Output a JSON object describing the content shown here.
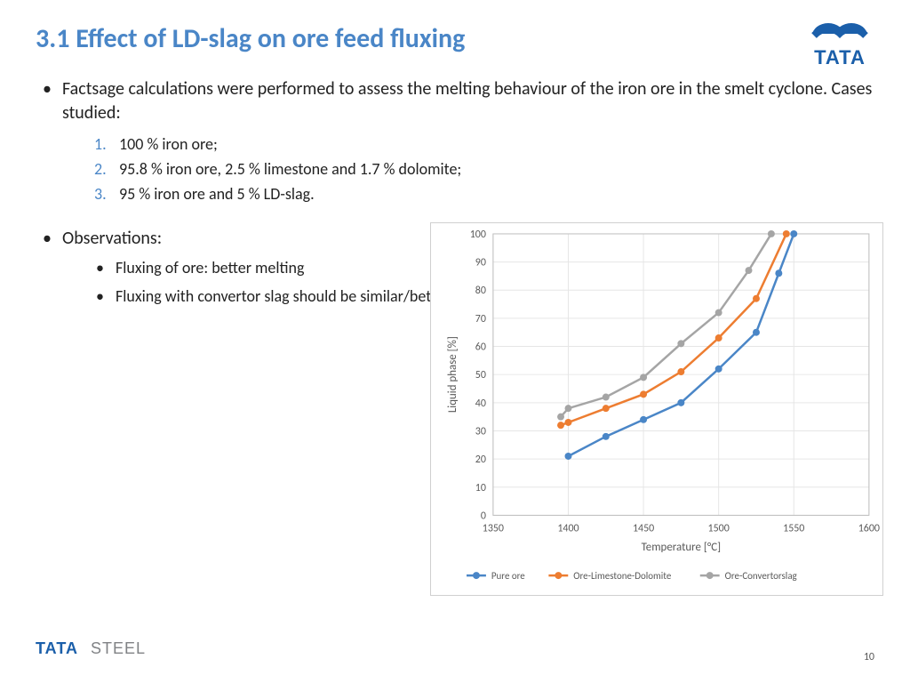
{
  "title": "3.1 Effect of LD-slag on ore feed fluxing",
  "intro": "Factsage calculations were performed to assess the melting behaviour of the iron ore in the smelt cyclone. Cases studied:",
  "cases": [
    "100 % iron ore;",
    "95.8 % iron ore, 2.5 % limestone and 1.7 % dolomite;",
    "95 % iron ore and 5 % LD-slag."
  ],
  "obs_header": "Observations:",
  "observations": [
    "Fluxing of ore: better melting",
    "Fluxing with convertor slag should be similar/better as compared to limestone/dolomite."
  ],
  "chart": {
    "type": "line",
    "xlabel": "Temperature  [°C]",
    "ylabel": "Liquid phase  [%]",
    "xlim": [
      1350,
      1600
    ],
    "ylim": [
      0,
      100
    ],
    "xtick_step": 50,
    "ytick_step": 10,
    "grid_color": "#e6e6e6",
    "plot_border_color": "#bfbfbf",
    "background_color": "#ffffff",
    "axis_text_color": "#595959",
    "line_width": 2.5,
    "marker_size": 4,
    "series": [
      {
        "name": "Pure ore",
        "color": "#4a86c7",
        "x": [
          1400,
          1425,
          1450,
          1475,
          1500,
          1525,
          1540,
          1550
        ],
        "y": [
          21,
          28,
          34,
          40,
          52,
          65,
          86,
          100
        ]
      },
      {
        "name": "Ore-Limestone-Dolomite",
        "color": "#ed7d31",
        "x": [
          1395,
          1400,
          1425,
          1450,
          1475,
          1500,
          1525,
          1545
        ],
        "y": [
          32,
          33,
          38,
          43,
          51,
          63,
          77,
          100
        ]
      },
      {
        "name": "Ore-Convertorslag",
        "color": "#a5a5a5",
        "x": [
          1395,
          1400,
          1425,
          1450,
          1475,
          1500,
          1520,
          1535
        ],
        "y": [
          35,
          38,
          42,
          49,
          61,
          72,
          87,
          100
        ]
      }
    ]
  },
  "footer_brand": "TATA STEEL",
  "page_number": "10",
  "logo": {
    "text": "TATA",
    "color": "#1b5faa"
  }
}
